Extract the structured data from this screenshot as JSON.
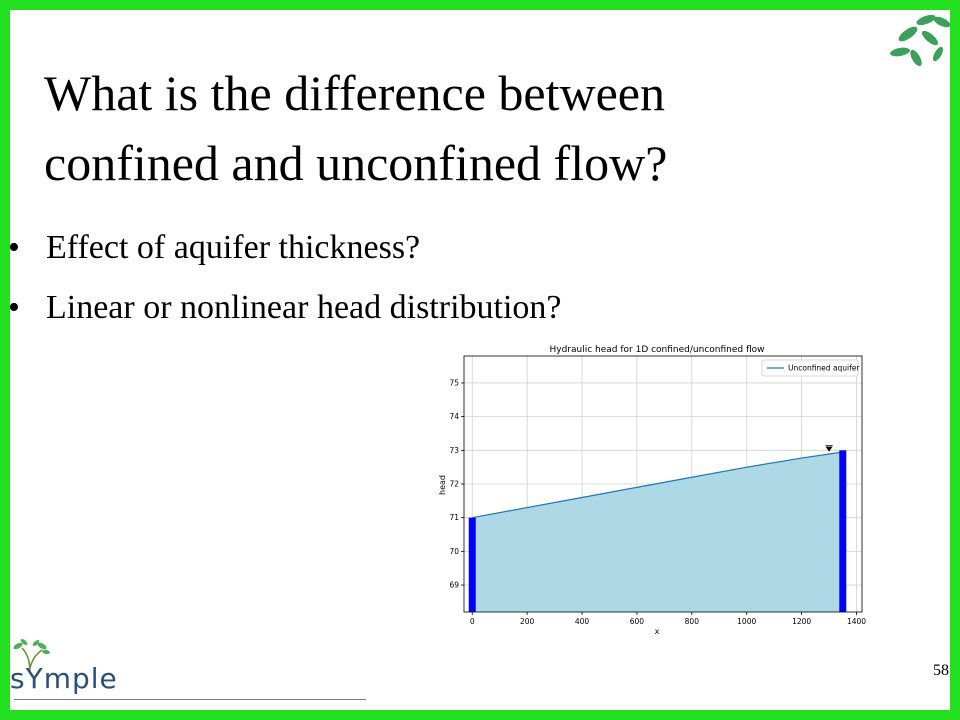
{
  "slide": {
    "title_line1": "What is the difference between",
    "title_line2": "confined and unconfined flow?",
    "bullets": [
      "Effect of aquifer thickness?",
      "Linear or nonlinear head distribution?"
    ],
    "page_number": "58",
    "logo_text": "sYmple",
    "bullet_symbol": "•"
  },
  "colors": {
    "frame": "#22e01f",
    "fill": "#add8e6",
    "line": "#1f77b4",
    "boundary": "#0000ff",
    "leaf": "#3aa05a"
  },
  "chart_data": {
    "type": "area",
    "title": "Hydraulic head for 1D confined/unconfined flow",
    "xlabel": "x",
    "ylabel": "head",
    "xlim": [
      -30,
      1420
    ],
    "ylim": [
      68.2,
      75.8
    ],
    "xticks": [
      0,
      200,
      400,
      600,
      800,
      1000,
      1200,
      1400
    ],
    "yticks": [
      69,
      70,
      71,
      72,
      73,
      74,
      75
    ],
    "grid": true,
    "legend": "top-right",
    "series": [
      {
        "name": "Unconfined aquifer",
        "x": [
          0,
          200,
          400,
          600,
          800,
          1000,
          1200,
          1350
        ],
        "values": [
          71.0,
          71.3,
          71.6,
          71.9,
          72.2,
          72.5,
          72.77,
          72.95
        ]
      }
    ],
    "boundaries": [
      {
        "x": 0,
        "head": 71.0
      },
      {
        "x": 1350,
        "head": 73.0
      }
    ],
    "water_table_marker": {
      "x": 1300,
      "head": 72.93
    }
  }
}
